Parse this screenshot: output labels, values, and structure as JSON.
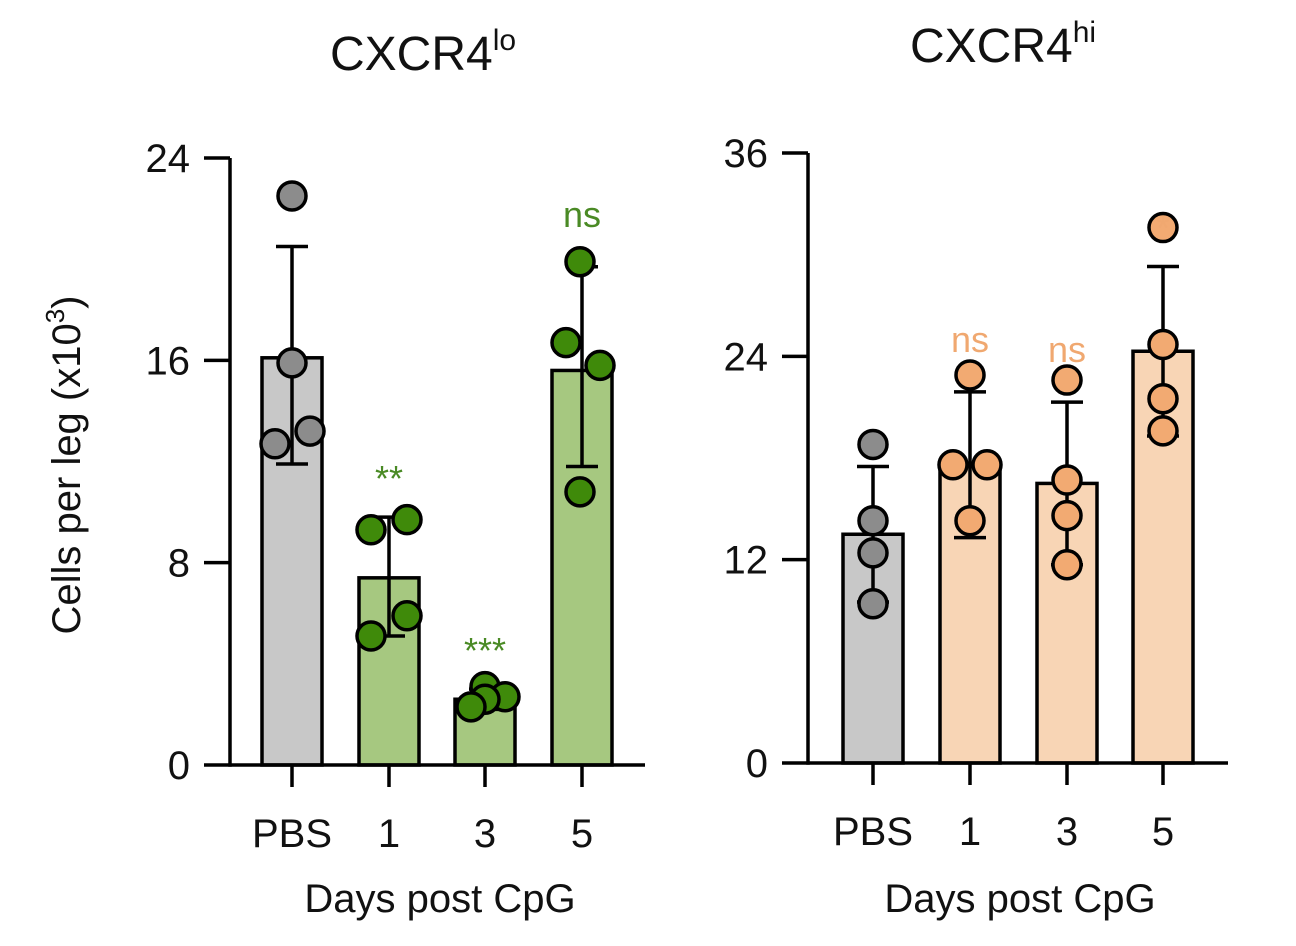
{
  "chart_data": [
    {
      "type": "bar",
      "title": "CXCR4",
      "title_superscript": "lo",
      "ylabel": "Cells per leg (x10",
      "ylabel_superscript": "3",
      "ylabel_suffix": ")",
      "xlabel": "Days post CpG",
      "categories": [
        "PBS",
        "1",
        "3",
        "5"
      ],
      "ylim": [
        0,
        24
      ],
      "yticks": [
        "0",
        "8",
        "16",
        "24"
      ],
      "values": [
        16.1,
        7.4,
        2.6,
        15.6
      ],
      "error_upper": [
        20.5,
        9.8,
        3.0,
        19.7
      ],
      "error_lower": [
        11.9,
        5.1,
        2.2,
        11.8
      ],
      "points": [
        [
          22.5,
          15.9,
          13.2,
          12.7
        ],
        [
          9.3,
          9.7,
          5.9,
          5.1
        ],
        [
          3.1,
          2.7,
          2.6,
          2.3
        ],
        [
          19.9,
          16.7,
          15.8,
          10.8
        ]
      ],
      "significance": [
        "",
        "**",
        "***",
        "ns"
      ],
      "bar_colors": [
        "#c8c8c8",
        "#a6c880",
        "#a6c880",
        "#a6c880"
      ],
      "point_colors": [
        "#8c8c8c",
        "#3f8a0a",
        "#3f8a0a",
        "#3f8a0a"
      ],
      "significance_color": "#4a8a25",
      "grid": false,
      "legend": "none"
    },
    {
      "type": "bar",
      "title": "CXCR4",
      "title_superscript": "hi",
      "xlabel": "Days post CpG",
      "categories": [
        "PBS",
        "1",
        "3",
        "5"
      ],
      "ylim": [
        0,
        36
      ],
      "yticks": [
        "0",
        "12",
        "24",
        "36"
      ],
      "values": [
        13.5,
        17.6,
        16.5,
        24.3
      ],
      "error_upper": [
        17.5,
        21.9,
        21.3,
        29.3
      ],
      "error_lower": [
        9.5,
        13.3,
        11.7,
        19.3
      ],
      "points": [
        [
          18.8,
          14.3,
          12.4,
          9.4
        ],
        [
          22.9,
          17.6,
          17.6,
          14.3
        ],
        [
          22.6,
          16.7,
          14.6,
          11.7
        ],
        [
          31.6,
          24.7,
          21.5,
          19.6
        ]
      ],
      "significance": [
        "",
        "ns",
        "ns",
        "*"
      ],
      "bar_colors": [
        "#c8c8c8",
        "#f8d5b5",
        "#f8d5b5",
        "#f8d5b5"
      ],
      "point_colors": [
        "#8c8c8c",
        "#f2aa72",
        "#f2aa72",
        "#f2aa72"
      ],
      "significance_color": "#f0a870",
      "grid": false,
      "legend": "none"
    }
  ]
}
